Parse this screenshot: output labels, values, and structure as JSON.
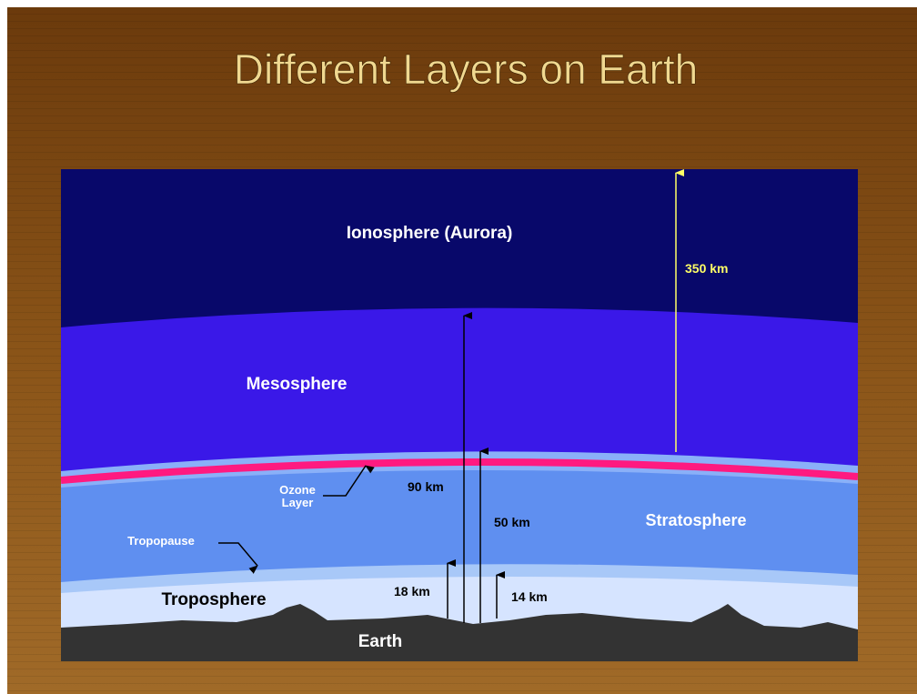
{
  "title": "Different Layers on Earth",
  "diagram": {
    "layers": [
      "Ionosphere (Aurora)",
      "Mesosphere",
      "Stratosphere",
      "Troposphere",
      "Earth"
    ],
    "callouts": [
      {
        "lines": [
          "Ozone",
          "Layer"
        ]
      },
      {
        "lines": [
          "Tropopause"
        ]
      }
    ],
    "altitudes": [
      "350 km",
      "90 km",
      "50 km",
      "18 km",
      "14 km"
    ]
  }
}
